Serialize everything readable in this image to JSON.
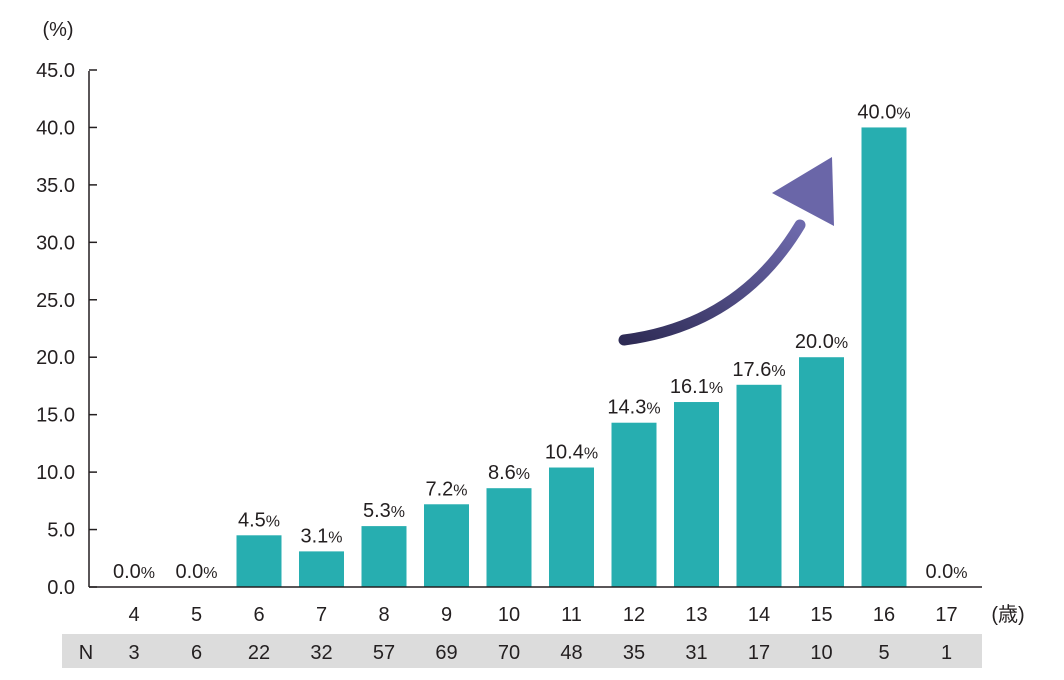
{
  "chart_data": {
    "type": "bar",
    "y_unit_label": "(%)",
    "x_unit_label": "(歳)",
    "categories": [
      "4",
      "5",
      "6",
      "7",
      "8",
      "9",
      "10",
      "11",
      "12",
      "13",
      "14",
      "15",
      "16",
      "17"
    ],
    "values": [
      0.0,
      0.0,
      4.5,
      3.1,
      5.3,
      7.2,
      8.6,
      10.4,
      14.3,
      16.1,
      17.6,
      20.0,
      40.0,
      0.0
    ],
    "value_labels": [
      "0.0",
      "0.0",
      "4.5",
      "3.1",
      "5.3",
      "7.2",
      "8.6",
      "10.4",
      "14.3",
      "16.1",
      "17.6",
      "20.0",
      "40.0",
      "0.0"
    ],
    "value_suffix": "%",
    "ylim": [
      0,
      45
    ],
    "yticks": [
      "0.0",
      "5.0",
      "10.0",
      "15.0",
      "20.0",
      "25.0",
      "30.0",
      "35.0",
      "40.0",
      "45.0"
    ],
    "n_row_label": "N",
    "n_values": [
      "3",
      "6",
      "22",
      "32",
      "57",
      "69",
      "70",
      "48",
      "35",
      "31",
      "17",
      "10",
      "5",
      "1"
    ],
    "bar_color": "#27aeb0",
    "arrow_color": "#5f5b9c",
    "n_row_background": "#dcdcdc",
    "grid": false,
    "legend": "none"
  }
}
